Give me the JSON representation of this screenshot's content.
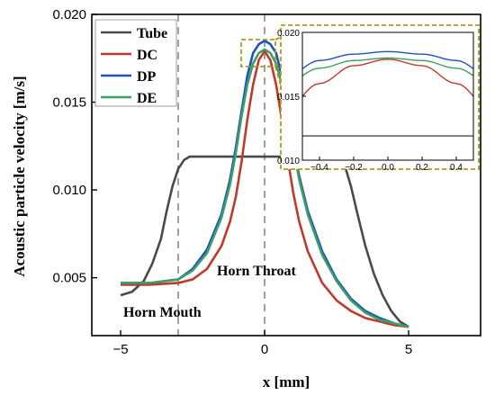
{
  "chart_data": {
    "type": "line",
    "xlabel": "x [mm]",
    "ylabel": "Acoustic particle velocity [m/s]",
    "xlim": [
      -6,
      7.5
    ],
    "ylim": [
      0.0017,
      0.02
    ],
    "xticks": [
      -5,
      0,
      5
    ],
    "xtick_labels": [
      "−5",
      "0",
      "5"
    ],
    "yticks": [
      0.005,
      0.01,
      0.015,
      0.02
    ],
    "ytick_labels": [
      "0.005",
      "0.010",
      "0.015",
      "0.020"
    ],
    "legend_position": "top-left",
    "grid": false,
    "series": [
      {
        "name": "Tube",
        "color": "#4a4a4a",
        "x": [
          -5,
          -4.6,
          -4.2,
          -3.9,
          -3.6,
          -3.4,
          -3.2,
          -3.0,
          -2.8,
          -2.6,
          -2.4,
          -2.0,
          -1.0,
          0,
          1.0,
          2.0,
          2.4,
          2.6,
          2.8,
          3.0,
          3.2,
          3.5,
          3.8,
          4.1,
          4.4,
          4.7,
          5
        ],
        "y": [
          0.004,
          0.0042,
          0.0048,
          0.0058,
          0.0072,
          0.0088,
          0.0102,
          0.0112,
          0.0117,
          0.0119,
          0.0119,
          0.0119,
          0.0119,
          0.0119,
          0.0119,
          0.0119,
          0.0119,
          0.0118,
          0.0113,
          0.0102,
          0.0088,
          0.0068,
          0.0052,
          0.004,
          0.0031,
          0.0025,
          0.0022
        ]
      },
      {
        "name": "DC",
        "color": "#c0392b",
        "x": [
          -5,
          -4,
          -3,
          -2.5,
          -2,
          -1.5,
          -1.2,
          -1.0,
          -0.8,
          -0.6,
          -0.4,
          -0.2,
          0,
          0.2,
          0.4,
          0.6,
          0.8,
          1.0,
          1.2,
          1.5,
          2.0,
          2.5,
          3.0,
          3.5,
          4.0,
          4.5,
          5
        ],
        "y": [
          0.0046,
          0.0046,
          0.0047,
          0.0049,
          0.0055,
          0.0068,
          0.0082,
          0.0096,
          0.0116,
          0.014,
          0.016,
          0.0174,
          0.0179,
          0.0174,
          0.016,
          0.014,
          0.0118,
          0.0098,
          0.0082,
          0.0065,
          0.0047,
          0.0037,
          0.0031,
          0.0027,
          0.0025,
          0.0023,
          0.0022
        ]
      },
      {
        "name": "DP",
        "color": "#1f4fc2",
        "x": [
          -5,
          -4,
          -3,
          -2.5,
          -2,
          -1.5,
          -1.2,
          -1.0,
          -0.8,
          -0.6,
          -0.4,
          -0.2,
          0,
          0.2,
          0.4,
          0.6,
          0.8,
          1.0,
          1.2,
          1.5,
          2.0,
          2.5,
          3.0,
          3.5,
          4.0,
          4.5,
          5
        ],
        "y": [
          0.0047,
          0.0047,
          0.0049,
          0.0055,
          0.0066,
          0.0086,
          0.0106,
          0.0124,
          0.0145,
          0.0165,
          0.0178,
          0.0183,
          0.0185,
          0.0183,
          0.0178,
          0.0165,
          0.0146,
          0.0126,
          0.0108,
          0.0088,
          0.0065,
          0.0049,
          0.0038,
          0.0031,
          0.0027,
          0.0024,
          0.0022
        ]
      },
      {
        "name": "DE",
        "color": "#3aa064",
        "x": [
          -5,
          -4,
          -3,
          -2.5,
          -2,
          -1.5,
          -1.2,
          -1.0,
          -0.8,
          -0.6,
          -0.4,
          -0.2,
          0,
          0.2,
          0.4,
          0.6,
          0.8,
          1.0,
          1.2,
          1.5,
          2.0,
          2.5,
          3.0,
          3.5,
          4.0,
          4.5,
          5
        ],
        "y": [
          0.0047,
          0.0047,
          0.0049,
          0.0054,
          0.0064,
          0.0084,
          0.0103,
          0.0121,
          0.0142,
          0.016,
          0.0172,
          0.0178,
          0.018,
          0.0178,
          0.0172,
          0.016,
          0.0143,
          0.0124,
          0.0106,
          0.0086,
          0.0063,
          0.0048,
          0.0037,
          0.003,
          0.0026,
          0.0024,
          0.0022
        ]
      }
    ],
    "vlines": [
      -3,
      0
    ],
    "annotations": [
      "Horn Throat",
      "Horn Mouth"
    ],
    "inset": {
      "xlim": [
        -0.5,
        0.5
      ],
      "ylim": [
        0.01,
        0.02
      ],
      "xticks": [
        -0.4,
        -0.2,
        0.0,
        0.2,
        0.4
      ],
      "xtick_labels": [
        "−0.4",
        "−0.2",
        "0.0",
        "0.2",
        "0.4"
      ],
      "yticks": [
        0.01,
        0.015,
        0.02
      ],
      "ytick_labels": [
        "0.010",
        "0.015",
        "0.020"
      ],
      "border_color": "#b09a1e"
    }
  }
}
